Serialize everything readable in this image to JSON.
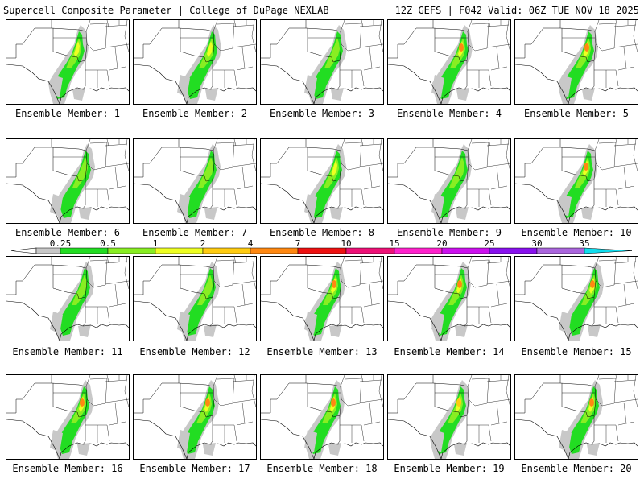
{
  "header": {
    "left": "Supercell Composite Parameter | College of DuPage NEXLAB",
    "right": "12Z GEFS | F042 Valid: 06Z TUE NOV 18 2025"
  },
  "members": [
    {
      "label": "Ensemble Member: 1",
      "intensity": 0.7
    },
    {
      "label": "Ensemble Member: 2",
      "intensity": 0.65
    },
    {
      "label": "Ensemble Member: 3",
      "intensity": 0.55
    },
    {
      "label": "Ensemble Member: 4",
      "intensity": 0.8
    },
    {
      "label": "Ensemble Member: 5",
      "intensity": 0.85
    },
    {
      "label": "Ensemble Member: 6",
      "intensity": 0.5
    },
    {
      "label": "Ensemble Member: 7",
      "intensity": 0.5
    },
    {
      "label": "Ensemble Member: 8",
      "intensity": 0.6
    },
    {
      "label": "Ensemble Member: 9",
      "intensity": 0.45
    },
    {
      "label": "Ensemble Member: 10",
      "intensity": 0.8
    },
    {
      "label": "Ensemble Member: 11",
      "intensity": 0.45
    },
    {
      "label": "Ensemble Member: 12",
      "intensity": 0.55
    },
    {
      "label": "Ensemble Member: 13",
      "intensity": 0.85
    },
    {
      "label": "Ensemble Member: 14",
      "intensity": 0.8
    },
    {
      "label": "Ensemble Member: 15",
      "intensity": 0.8
    },
    {
      "label": "Ensemble Member: 16",
      "intensity": 0.85
    },
    {
      "label": "Ensemble Member: 17",
      "intensity": 0.85
    },
    {
      "label": "Ensemble Member: 18",
      "intensity": 0.8
    },
    {
      "label": "Ensemble Member: 19",
      "intensity": 0.75
    },
    {
      "label": "Ensemble Member: 20",
      "intensity": 0.85
    }
  ],
  "colorbar": {
    "ticks": [
      "0.25",
      "0.5",
      "1",
      "2",
      "4",
      "7",
      "10",
      "15",
      "20",
      "25",
      "30",
      "35"
    ],
    "colors": [
      "#c8c8c8",
      "#22dd22",
      "#88ee22",
      "#eeff22",
      "#ffcc11",
      "#ff8811",
      "#ee1111",
      "#ee1177",
      "#ff22cc",
      "#cc11ee",
      "#8811ee",
      "#aa66dd",
      "#11ddee"
    ]
  }
}
